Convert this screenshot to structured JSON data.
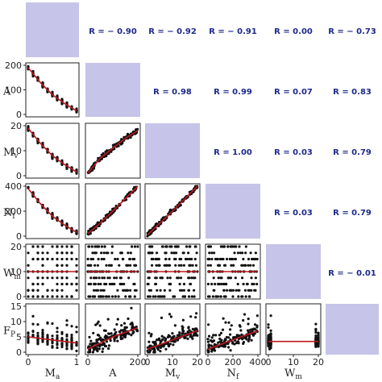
{
  "chart_data": {
    "type": "scatter",
    "variables": [
      {
        "key": "Ma",
        "base": "M",
        "sub": "a",
        "range": [
          0,
          1
        ],
        "ticks": [
          0,
          1
        ]
      },
      {
        "key": "A",
        "base": "A",
        "sub": "",
        "range": [
          0,
          200
        ],
        "ticks": [
          0,
          100,
          200
        ]
      },
      {
        "key": "Mv",
        "base": "M",
        "sub": "v",
        "range": [
          0,
          20
        ],
        "ticks": [
          0,
          10,
          20
        ]
      },
      {
        "key": "Nf",
        "base": "N",
        "sub": "f",
        "range": [
          0,
          400
        ],
        "ticks": [
          0,
          200,
          400
        ]
      },
      {
        "key": "Wm",
        "base": "W",
        "sub": "m",
        "range": [
          0,
          20
        ],
        "ticks": [
          0,
          10,
          20
        ]
      },
      {
        "key": "Fp",
        "base": "F",
        "sub": "P",
        "range": [
          0,
          15
        ],
        "ticks": [
          0,
          5,
          10,
          15
        ]
      }
    ],
    "correlations": [
      {
        "row": 0,
        "col": 1,
        "label": "R = − 0.90"
      },
      {
        "row": 0,
        "col": 2,
        "label": "R = − 0.92"
      },
      {
        "row": 0,
        "col": 3,
        "label": "R = − 0.91"
      },
      {
        "row": 0,
        "col": 4,
        "label": "R = 0.00"
      },
      {
        "row": 0,
        "col": 5,
        "label": "R = − 0.73"
      },
      {
        "row": 1,
        "col": 2,
        "label": "R = 0.98"
      },
      {
        "row": 1,
        "col": 3,
        "label": "R = 0.99"
      },
      {
        "row": 1,
        "col": 4,
        "label": "R = 0.07"
      },
      {
        "row": 1,
        "col": 5,
        "label": "R = 0.83"
      },
      {
        "row": 2,
        "col": 3,
        "label": "R = 1.00"
      },
      {
        "row": 2,
        "col": 4,
        "label": "R = 0.03"
      },
      {
        "row": 2,
        "col": 5,
        "label": "R = 0.79"
      },
      {
        "row": 3,
        "col": 4,
        "label": "R = 0.03"
      },
      {
        "row": 3,
        "col": 5,
        "label": "R = 0.79"
      },
      {
        "row": 4,
        "col": 5,
        "label": "R = − 0.01"
      }
    ],
    "fit_lines": [
      {
        "row": 1,
        "col": 0,
        "x": [
          0,
          0.25,
          0.5,
          0.75,
          1
        ],
        "y": [
          190,
          130,
          80,
          45,
          15
        ]
      },
      {
        "row": 2,
        "col": 0,
        "x": [
          0,
          0.25,
          0.5,
          0.75,
          1
        ],
        "y": [
          19,
          13,
          8,
          4.5,
          1.5
        ]
      },
      {
        "row": 3,
        "col": 0,
        "x": [
          0,
          0.25,
          0.5,
          0.75,
          1
        ],
        "y": [
          380,
          260,
          160,
          90,
          30
        ]
      },
      {
        "row": 4,
        "col": 0,
        "x": [
          0,
          1
        ],
        "y": [
          10,
          10
        ]
      },
      {
        "row": 5,
        "col": 0,
        "x": [
          0,
          0.5,
          1
        ],
        "y": [
          5,
          4,
          3
        ]
      },
      {
        "row": 2,
        "col": 1,
        "x": [
          0,
          50,
          100,
          150,
          200
        ],
        "y": [
          1,
          7,
          11,
          15,
          18
        ]
      },
      {
        "row": 3,
        "col": 1,
        "x": [
          0,
          50,
          100,
          150,
          200
        ],
        "y": [
          20,
          105,
          200,
          300,
          400
        ]
      },
      {
        "row": 4,
        "col": 1,
        "x": [
          0,
          200
        ],
        "y": [
          10,
          10
        ]
      },
      {
        "row": 5,
        "col": 1,
        "x": [
          0,
          100,
          200
        ],
        "y": [
          1,
          5,
          8
        ]
      },
      {
        "row": 3,
        "col": 2,
        "x": [
          0,
          10,
          20
        ],
        "y": [
          10,
          200,
          400
        ]
      },
      {
        "row": 4,
        "col": 2,
        "x": [
          0,
          20
        ],
        "y": [
          10,
          10
        ]
      },
      {
        "row": 5,
        "col": 2,
        "x": [
          0,
          10,
          20
        ],
        "y": [
          1,
          4,
          7
        ]
      },
      {
        "row": 4,
        "col": 3,
        "x": [
          0,
          400
        ],
        "y": [
          10,
          10
        ]
      },
      {
        "row": 5,
        "col": 3,
        "x": [
          0,
          200,
          400
        ],
        "y": [
          1,
          4,
          7
        ]
      },
      {
        "row": 5,
        "col": 4,
        "x": [
          0,
          20
        ],
        "y": [
          3.5,
          3.5
        ]
      }
    ],
    "grid": false,
    "xlabel": "",
    "ylabel": "",
    "title": ""
  }
}
